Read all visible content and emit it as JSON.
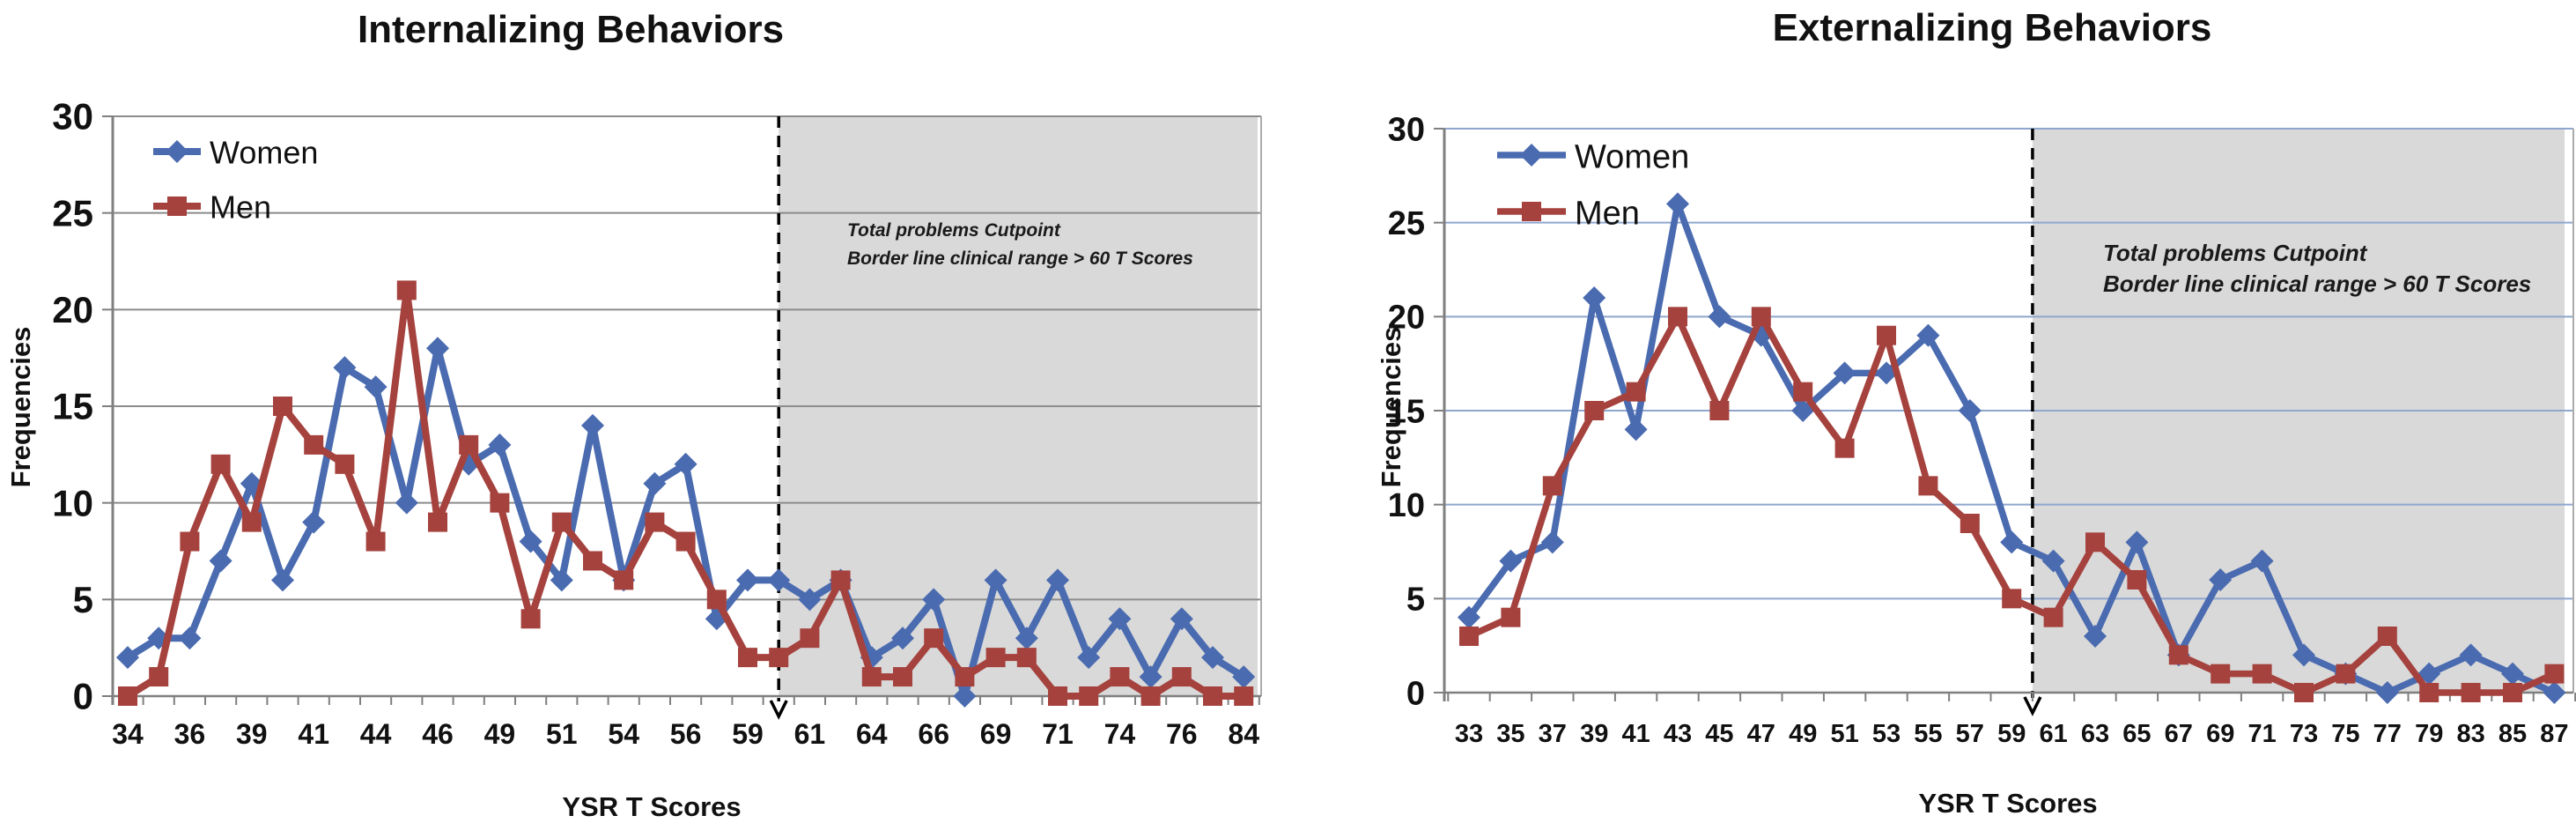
{
  "figure": {
    "background_color": "#ffffff"
  },
  "chart_data": [
    {
      "id": "internalizing",
      "type": "line",
      "title": "Internalizing Behaviors",
      "xlabel": "YSR T Scores",
      "ylabel": "Frequencies",
      "ylim": [
        0,
        30
      ],
      "yticks": [
        0,
        5,
        10,
        15,
        20,
        25,
        30
      ],
      "x_labels": [
        "34",
        "36",
        "39",
        "41",
        "44",
        "46",
        "49",
        "51",
        "54",
        "56",
        "59",
        "61",
        "64",
        "66",
        "69",
        "71",
        "74",
        "76",
        "84"
      ],
      "points_per_label": 2,
      "n_points": 37,
      "legend_position": "top-left",
      "grid_on": true,
      "grid_color": "#8C8C8C",
      "axis_color": "#7F7F7F",
      "shade_color": "#D9D9D9",
      "cutpoint": {
        "at_point_index": 21,
        "line_color": "#000000",
        "line_style": "dashed",
        "arrow": "down",
        "annotation_line1": "Total problems Cutpoint",
        "annotation_line2": "Border line clinical range > 60 T Scores"
      },
      "series": [
        {
          "name": "Women",
          "color": "#4A6BB0",
          "marker": "diamond",
          "values": [
            2,
            3,
            3,
            7,
            11,
            6,
            9,
            17,
            16,
            10,
            18,
            12,
            13,
            8,
            6,
            14,
            6,
            11,
            12,
            4,
            6,
            6,
            5,
            6,
            2,
            3,
            5,
            0,
            6,
            3,
            6,
            2,
            4,
            1,
            4,
            2,
            1
          ]
        },
        {
          "name": "Men",
          "color": "#A5423E",
          "marker": "square",
          "values": [
            0,
            1,
            8,
            12,
            9,
            15,
            13,
            12,
            8,
            21,
            9,
            13,
            10,
            4,
            9,
            7,
            6,
            9,
            8,
            5,
            2,
            2,
            3,
            6,
            1,
            1,
            3,
            1,
            2,
            2,
            0,
            0,
            1,
            0,
            1,
            0,
            0
          ]
        }
      ]
    },
    {
      "id": "externalizing",
      "type": "line",
      "title": "Externalizing  Behaviors",
      "xlabel": "YSR T Scores",
      "ylabel": "Frequencies",
      "ylim": [
        0,
        30
      ],
      "yticks": [
        0,
        5,
        10,
        15,
        20,
        25,
        30
      ],
      "x_labels": [
        "33",
        "35",
        "37",
        "39",
        "41",
        "43",
        "45",
        "47",
        "49",
        "51",
        "53",
        "55",
        "57",
        "59",
        "61",
        "63",
        "65",
        "67",
        "69",
        "71",
        "73",
        "75",
        "77",
        "79",
        "83",
        "85",
        "87"
      ],
      "points_per_label": 1,
      "n_points": 27,
      "legend_position": "top-left",
      "grid_on": true,
      "grid_color": "#8FA6CE",
      "axis_color": "#7F7F7F",
      "shade_color": "#D9D9D9",
      "cutpoint": {
        "at_point_index": 13.5,
        "line_color": "#000000",
        "line_style": "dashed",
        "arrow": "down",
        "annotation_line1": "Total problems Cutpoint",
        "annotation_line2": "Border line clinical range > 60 T Scores"
      },
      "series": [
        {
          "name": "Women",
          "color": "#4A6BB0",
          "marker": "diamond",
          "values": [
            4,
            7,
            8,
            21,
            14,
            26,
            20,
            19,
            15,
            17,
            17,
            19,
            15,
            8,
            7,
            3,
            8,
            2,
            6,
            7,
            2,
            1,
            0,
            1,
            2,
            1,
            0
          ]
        },
        {
          "name": "Men",
          "color": "#A5423E",
          "marker": "square",
          "values": [
            3,
            4,
            11,
            15,
            16,
            20,
            15,
            20,
            16,
            13,
            19,
            11,
            9,
            5,
            4,
            8,
            6,
            2,
            1,
            1,
            0,
            1,
            3,
            0,
            0,
            0,
            1
          ]
        }
      ]
    }
  ]
}
